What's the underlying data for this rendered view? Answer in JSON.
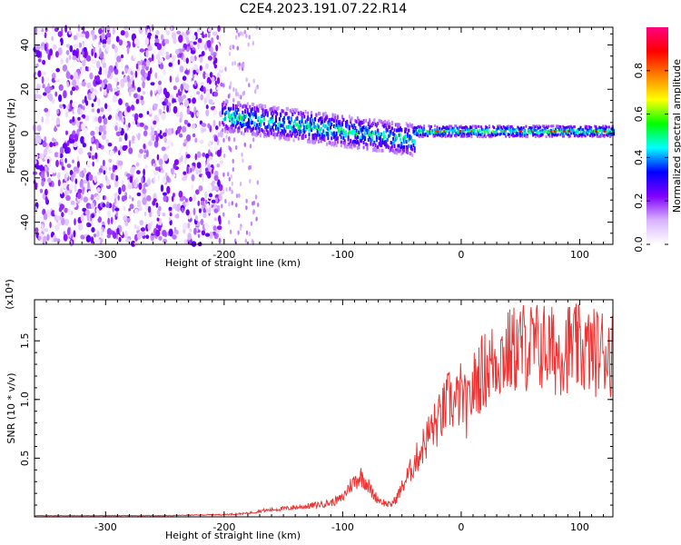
{
  "figure": {
    "title": "C2E4.2023.191.07.22.R14"
  },
  "chart_data": [
    {
      "type": "heatmap",
      "title": "C2E4.2023.191.07.22.R14",
      "xlabel": "Height of straight line (km)",
      "ylabel": "Frequency (Hz)",
      "xlim": [
        -360,
        128
      ],
      "ylim": [
        -50,
        48
      ],
      "xticks": [
        -300,
        -200,
        -100,
        0,
        100
      ],
      "yticks": [
        -40,
        -20,
        0,
        20,
        40
      ],
      "colorbar": {
        "label": "Normalized spectral amplitude",
        "range": [
          0,
          1
        ],
        "ticks": [
          0.0,
          0.2,
          0.4,
          0.6,
          0.8
        ],
        "colors": [
          "#ffffff",
          "#d9b3ff",
          "#8000ff",
          "#0000ff",
          "#00ffff",
          "#00ff00",
          "#ffff00",
          "#ff8000",
          "#ff0000",
          "#ff0080"
        ]
      },
      "description_regions": [
        {
          "x_range": [
            -360,
            -202
          ],
          "freq_range": [
            -50,
            48
          ],
          "amplitude": "low-moderate noise"
        },
        {
          "x_range": [
            -202,
            -40
          ],
          "center_freq_start": 8,
          "center_freq_end": -3,
          "bandwidth": 14,
          "amplitude": "0.3-0.6"
        },
        {
          "x_range": [
            -40,
            128
          ],
          "center_freq": 1,
          "bandwidth": 5,
          "amplitude": "0.4-0.9"
        }
      ]
    },
    {
      "type": "line",
      "xlabel": "Height of straight line (km)",
      "ylabel": "SNR (10 * v/v)",
      "scale_label": "(x10⁴)",
      "xlim": [
        -360,
        128
      ],
      "ylim": [
        0,
        1.85
      ],
      "xticks": [
        -300,
        -200,
        -100,
        0,
        100
      ],
      "yticks": [
        0.5,
        1.0,
        1.5
      ],
      "ytick_labels": [
        "0.5",
        "1.0",
        "1.5"
      ],
      "series": [
        {
          "color": "#ee3333",
          "x": [
            -360,
            -300,
            -250,
            -200,
            -180,
            -170,
            -150,
            -130,
            -110,
            -100,
            -95,
            -90,
            -85,
            -80,
            -75,
            -70,
            -65,
            -60,
            -55,
            -50,
            -45,
            -40,
            -35,
            -30,
            -25,
            -20,
            -15,
            -10,
            -5,
            0,
            5,
            10,
            15,
            20,
            25,
            30,
            40,
            50,
            60,
            70,
            80,
            90,
            100,
            110,
            120,
            128
          ],
          "y": [
            0.01,
            0.01,
            0.01,
            0.02,
            0.03,
            0.05,
            0.07,
            0.09,
            0.12,
            0.16,
            0.25,
            0.3,
            0.35,
            0.3,
            0.2,
            0.15,
            0.12,
            0.1,
            0.15,
            0.25,
            0.35,
            0.45,
            0.55,
            0.65,
            0.75,
            0.8,
            0.9,
            1.0,
            0.95,
            1.05,
            0.9,
            1.1,
            1.2,
            1.25,
            1.3,
            1.35,
            1.4,
            1.45,
            1.45,
            1.45,
            1.4,
            1.45,
            1.42,
            1.4,
            1.42,
            1.4
          ]
        }
      ]
    }
  ]
}
